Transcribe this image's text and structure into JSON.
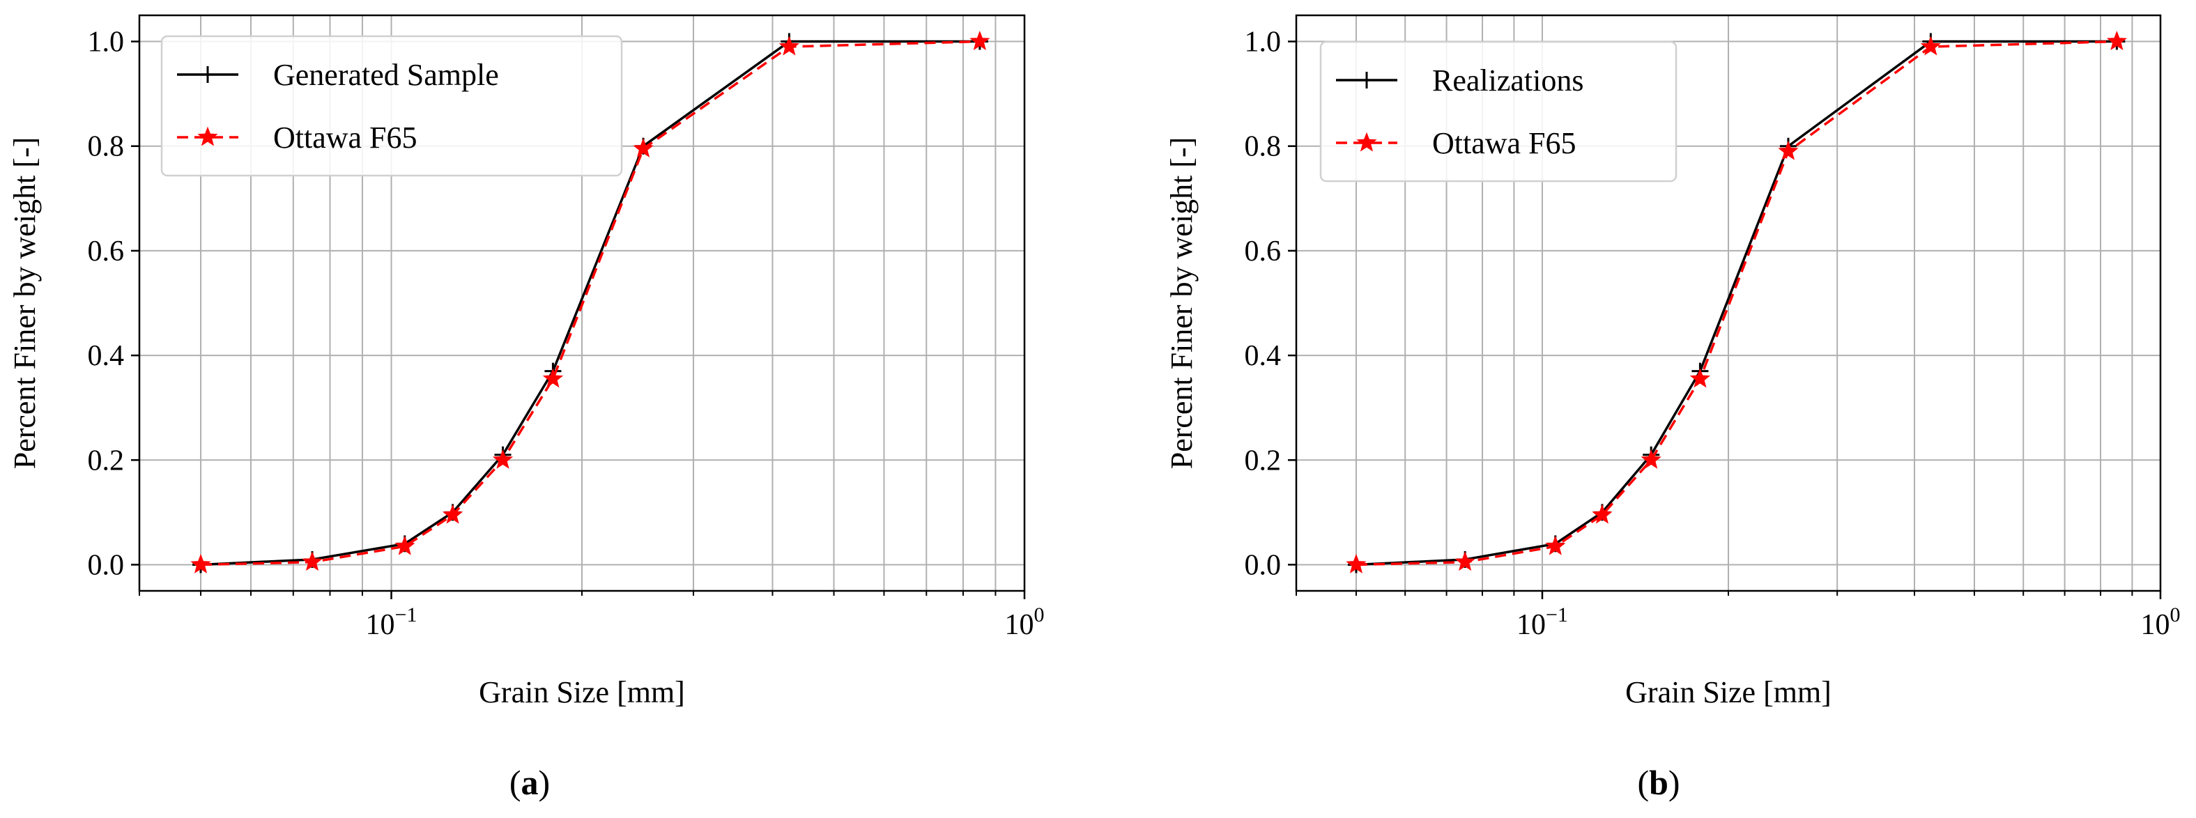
{
  "panels": [
    {
      "caption": "(a)",
      "caption_letter": "a",
      "chart_data": {
        "type": "line",
        "xscale": "log",
        "xlim": [
          0.04,
          1.0
        ],
        "ylim": [
          -0.05,
          1.05
        ],
        "xticks": [
          0.1,
          1.0
        ],
        "xtick_labels": [
          {
            "base": "10",
            "exp": "−1"
          },
          {
            "base": "10",
            "exp": "0"
          }
        ],
        "yticks": [
          0.0,
          0.2,
          0.4,
          0.6,
          0.8,
          1.0
        ],
        "ytick_labels": [
          "0.0",
          "0.2",
          "0.4",
          "0.6",
          "0.8",
          "1.0"
        ],
        "xlabel": "Grain Size [mm]",
        "ylabel": "Percent Finer by weight [-]",
        "grid": true,
        "legend_position": "top-left",
        "series": [
          {
            "name": "Generated Sample",
            "color": "#000000",
            "style": "solid",
            "marker": "plus",
            "x": [
              0.05,
              0.075,
              0.105,
              0.125,
              0.15,
              0.18,
              0.25,
              0.425,
              0.85
            ],
            "y": [
              0.0,
              0.01,
              0.04,
              0.1,
              0.21,
              0.37,
              0.8,
              1.0,
              1.0
            ]
          },
          {
            "name": "Ottawa F65",
            "color": "#ff0000",
            "style": "dashed",
            "marker": "star",
            "x": [
              0.05,
              0.075,
              0.105,
              0.125,
              0.15,
              0.18,
              0.25,
              0.425,
              0.85
            ],
            "y": [
              0.0,
              0.005,
              0.035,
              0.095,
              0.2,
              0.355,
              0.795,
              0.99,
              1.0
            ]
          }
        ]
      }
    },
    {
      "caption": "(b)",
      "caption_letter": "b",
      "chart_data": {
        "type": "line",
        "xscale": "log",
        "xlim": [
          0.04,
          1.0
        ],
        "ylim": [
          -0.05,
          1.05
        ],
        "xticks": [
          0.1,
          1.0
        ],
        "xtick_labels": [
          {
            "base": "10",
            "exp": "−1"
          },
          {
            "base": "10",
            "exp": "0"
          }
        ],
        "yticks": [
          0.0,
          0.2,
          0.4,
          0.6,
          0.8,
          1.0
        ],
        "ytick_labels": [
          "0.0",
          "0.2",
          "0.4",
          "0.6",
          "0.8",
          "1.0"
        ],
        "xlabel": "Grain Size [mm]",
        "ylabel": "Percent Finer by weight [-]",
        "grid": true,
        "legend_position": "top-left",
        "series": [
          {
            "name": "Realizations",
            "color": "#000000",
            "style": "solid",
            "marker": "plus",
            "x": [
              0.05,
              0.075,
              0.105,
              0.125,
              0.15,
              0.18,
              0.25,
              0.425,
              0.85
            ],
            "y": [
              0.0,
              0.01,
              0.04,
              0.1,
              0.21,
              0.37,
              0.8,
              1.0,
              1.0
            ]
          },
          {
            "name": "Ottawa F65",
            "color": "#ff0000",
            "style": "dashed",
            "marker": "star",
            "x": [
              0.05,
              0.075,
              0.105,
              0.125,
              0.15,
              0.18,
              0.25,
              0.425,
              0.85
            ],
            "y": [
              0.0,
              0.005,
              0.035,
              0.095,
              0.2,
              0.355,
              0.79,
              0.99,
              1.0
            ]
          }
        ]
      }
    }
  ]
}
